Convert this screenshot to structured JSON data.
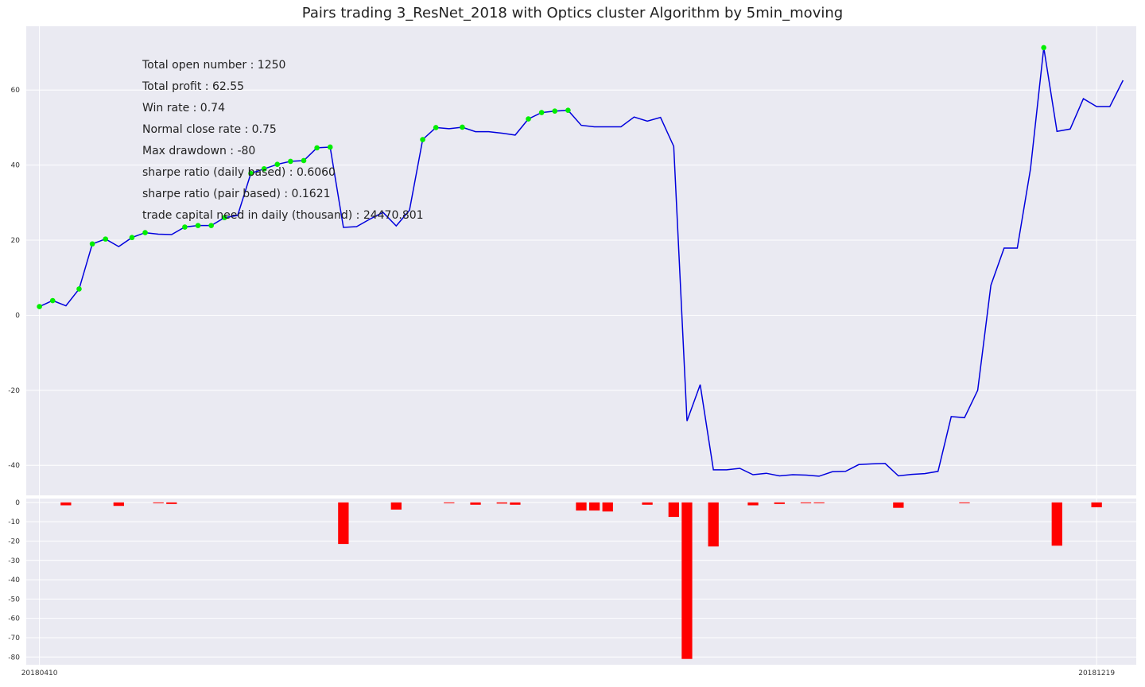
{
  "chart_data": [
    {
      "type": "line",
      "title": "Pairs trading 3_ResNet_2018 with Optics cluster Algorithm by 5min_moving",
      "xlabel": "",
      "ylabel": "",
      "ylim": [
        -48,
        77
      ],
      "yticks": [
        60,
        40,
        20,
        0,
        -20,
        -40
      ],
      "grid": true,
      "line_color": "#0000dd",
      "marker_color": "#00ee00",
      "x_range": [
        -1,
        83
      ],
      "x_tick_labels": [
        {
          "x": 0,
          "label": "20180410"
        },
        {
          "x": 80,
          "label": "20181219"
        }
      ],
      "values": [
        2.3,
        3.9,
        2.5,
        7.0,
        19.0,
        20.3,
        18.3,
        20.7,
        22.0,
        21.6,
        21.5,
        23.5,
        23.9,
        23.9,
        26.0,
        26.6,
        37.8,
        39.0,
        40.2,
        41.0,
        41.2,
        44.6,
        44.8,
        23.4,
        23.6,
        25.6,
        27.4,
        23.8,
        28.0,
        46.8,
        50.0,
        49.7,
        50.1,
        48.9,
        48.9,
        48.5,
        48.0,
        52.3,
        54.0,
        54.4,
        54.6,
        50.6,
        50.2,
        50.2,
        50.2,
        52.8,
        51.7,
        52.7,
        45.0,
        -28.2,
        -18.5,
        -41.2,
        -41.2,
        -40.8,
        -42.5,
        -42.1,
        -42.8,
        -42.5,
        -42.6,
        -42.9,
        -41.7,
        -41.6,
        -39.8,
        -39.6,
        -39.5,
        -42.8,
        -42.4,
        -42.2,
        -41.6,
        -27.0,
        -27.3,
        -20.0,
        8.0,
        17.9,
        17.9,
        39.0,
        71.3,
        49.0,
        49.6,
        57.7,
        55.6,
        55.6,
        62.6
      ],
      "marker_indices": [
        0,
        1,
        3,
        4,
        5,
        7,
        8,
        11,
        12,
        13,
        14,
        16,
        17,
        18,
        19,
        20,
        21,
        22,
        29,
        30,
        32,
        37,
        38,
        39,
        40,
        76
      ],
      "annotations": [
        "Total open number : 1250",
        "Total profit : 62.55",
        "Win rate : 0.74",
        "Normal close rate : 0.75",
        "Max drawdown : -80",
        "sharpe ratio (daily based) : 0.6060",
        "sharpe ratio (pair based) : 0.1621",
        "trade capital need in daily (thousand) : 24470.801"
      ]
    },
    {
      "type": "bar",
      "title": "",
      "ylim": [
        -84,
        2
      ],
      "yticks": [
        0,
        -10,
        -20,
        -30,
        -40,
        -50,
        -60,
        -70,
        -80
      ],
      "bar_color": "#ff0000",
      "grid": true,
      "bars": [
        {
          "x": 2,
          "value": -1.5
        },
        {
          "x": 6,
          "value": -1.8
        },
        {
          "x": 9,
          "value": -0.3
        },
        {
          "x": 10,
          "value": -0.8
        },
        {
          "x": 23,
          "value": -21.5
        },
        {
          "x": 27,
          "value": -3.7
        },
        {
          "x": 31,
          "value": -0.2
        },
        {
          "x": 33,
          "value": -1.2
        },
        {
          "x": 35,
          "value": -0.6
        },
        {
          "x": 36,
          "value": -1.2
        },
        {
          "x": 41,
          "value": -4.2
        },
        {
          "x": 42,
          "value": -4.2
        },
        {
          "x": 43,
          "value": -4.7
        },
        {
          "x": 46,
          "value": -1.2
        },
        {
          "x": 48,
          "value": -7.5
        },
        {
          "x": 49,
          "value": -81.0
        },
        {
          "x": 51,
          "value": -22.8
        },
        {
          "x": 54,
          "value": -1.5
        },
        {
          "x": 56,
          "value": -0.8
        },
        {
          "x": 58,
          "value": -0.4
        },
        {
          "x": 59,
          "value": -0.4
        },
        {
          "x": 65,
          "value": -2.8
        },
        {
          "x": 70,
          "value": -0.3
        },
        {
          "x": 77,
          "value": -22.4
        },
        {
          "x": 80,
          "value": -2.5
        }
      ]
    }
  ]
}
